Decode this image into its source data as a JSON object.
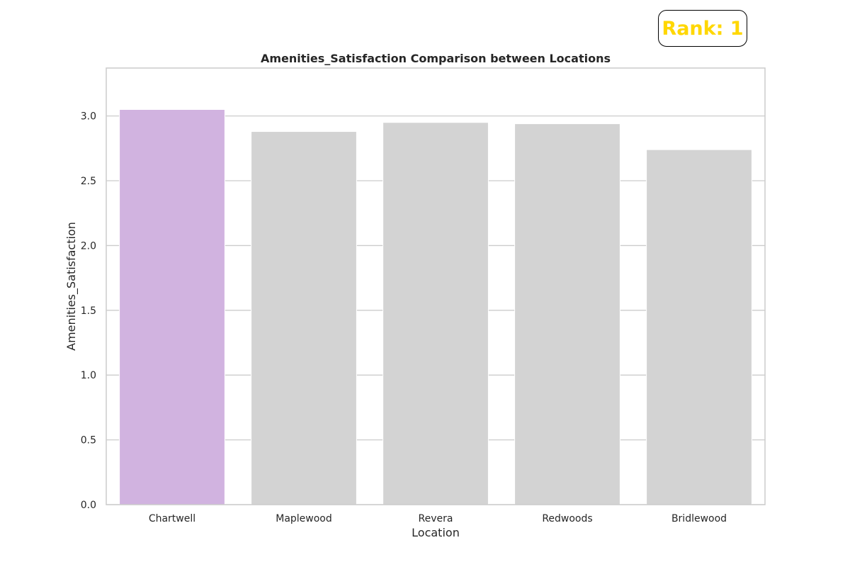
{
  "badge": {
    "text": "Rank: 1",
    "color": "#FFD700"
  },
  "chart_data": {
    "type": "bar",
    "title": "Amenities_Satisfaction Comparison between Locations",
    "xlabel": "Location",
    "ylabel": "Amenities_Satisfaction",
    "categories": [
      "Chartwell",
      "Maplewood",
      "Revera",
      "Redwoods",
      "Bridlewood"
    ],
    "values": [
      3.05,
      2.88,
      2.95,
      2.94,
      2.74
    ],
    "highlight_index": 0,
    "highlight_color": "#D1B3E0",
    "bar_color": "#D3D3D3",
    "ylim": [
      0,
      3.37
    ],
    "yticks": [
      0.0,
      0.5,
      1.0,
      1.5,
      2.0,
      2.5,
      3.0
    ],
    "ytick_labels": [
      "0.0",
      "0.5",
      "1.0",
      "1.5",
      "2.0",
      "2.5",
      "3.0"
    ],
    "grid": "horizontal",
    "grid_color": "#CCCCCC"
  }
}
